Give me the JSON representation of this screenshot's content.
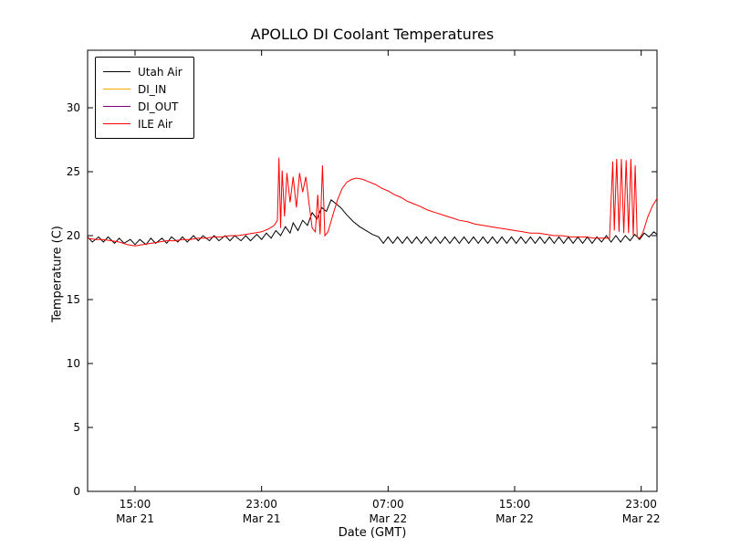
{
  "chart_data": {
    "type": "line",
    "title": "APOLLO DI Coolant Temperatures",
    "xlabel": "Date (GMT)",
    "ylabel": "Temperature (C)",
    "xlim": [
      0,
      36
    ],
    "ylim": [
      0,
      34.5
    ],
    "x_unit_hint": "hours along axis from ~12:00 Mar 21 GMT to ~00:00 Mar 23 GMT",
    "grid": false,
    "legend_position": "upper left",
    "xticks": [
      {
        "x": 3,
        "time": "15:00",
        "date": "Mar 21"
      },
      {
        "x": 11,
        "time": "23:00",
        "date": "Mar 21"
      },
      {
        "x": 19,
        "time": "07:00",
        "date": "Mar 22"
      },
      {
        "x": 27,
        "time": "15:00",
        "date": "Mar 22"
      },
      {
        "x": 35,
        "time": "23:00",
        "date": "Mar 22"
      }
    ],
    "yticks": [
      0,
      5,
      10,
      15,
      20,
      25,
      30
    ],
    "series": [
      {
        "name": "Utah Air",
        "color": "#000000",
        "points": [
          [
            0,
            19.9
          ],
          [
            0.3,
            19.5
          ],
          [
            0.7,
            19.9
          ],
          [
            1,
            19.5
          ],
          [
            1.3,
            19.9
          ],
          [
            1.7,
            19.4
          ],
          [
            2,
            19.8
          ],
          [
            2.3,
            19.4
          ],
          [
            2.7,
            19.7
          ],
          [
            3,
            19.3
          ],
          [
            3.3,
            19.7
          ],
          [
            3.7,
            19.3
          ],
          [
            4,
            19.8
          ],
          [
            4.3,
            19.4
          ],
          [
            4.7,
            19.8
          ],
          [
            5,
            19.4
          ],
          [
            5.3,
            19.9
          ],
          [
            5.7,
            19.5
          ],
          [
            6,
            19.9
          ],
          [
            6.3,
            19.5
          ],
          [
            6.7,
            20.0
          ],
          [
            7,
            19.6
          ],
          [
            7.3,
            20.0
          ],
          [
            7.7,
            19.6
          ],
          [
            8,
            20.0
          ],
          [
            8.3,
            19.6
          ],
          [
            8.7,
            20.0
          ],
          [
            9,
            19.6
          ],
          [
            9.3,
            20.0
          ],
          [
            9.7,
            19.6
          ],
          [
            10,
            20.0
          ],
          [
            10.3,
            19.6
          ],
          [
            10.7,
            20.1
          ],
          [
            11,
            19.7
          ],
          [
            11.3,
            20.2
          ],
          [
            11.6,
            19.8
          ],
          [
            11.9,
            20.4
          ],
          [
            12.2,
            20.0
          ],
          [
            12.5,
            20.7
          ],
          [
            12.8,
            20.2
          ],
          [
            13,
            21.0
          ],
          [
            13.3,
            20.4
          ],
          [
            13.6,
            21.2
          ],
          [
            13.9,
            20.8
          ],
          [
            14.2,
            21.8
          ],
          [
            14.5,
            21.3
          ],
          [
            14.8,
            22.2
          ],
          [
            15.1,
            21.9
          ],
          [
            15.4,
            22.8
          ],
          [
            15.7,
            22.5
          ],
          [
            16,
            22.2
          ],
          [
            16.4,
            21.6
          ],
          [
            16.8,
            21.1
          ],
          [
            17.2,
            20.7
          ],
          [
            17.6,
            20.4
          ],
          [
            18,
            20.1
          ],
          [
            18.4,
            19.9
          ],
          [
            18.7,
            19.4
          ],
          [
            19,
            19.9
          ],
          [
            19.3,
            19.4
          ],
          [
            19.6,
            19.9
          ],
          [
            19.9,
            19.4
          ],
          [
            20.2,
            19.9
          ],
          [
            20.5,
            19.4
          ],
          [
            20.8,
            19.9
          ],
          [
            21.1,
            19.4
          ],
          [
            21.4,
            19.9
          ],
          [
            21.7,
            19.4
          ],
          [
            22,
            19.9
          ],
          [
            22.3,
            19.4
          ],
          [
            22.6,
            19.9
          ],
          [
            22.9,
            19.4
          ],
          [
            23.2,
            19.9
          ],
          [
            23.5,
            19.4
          ],
          [
            23.8,
            19.9
          ],
          [
            24.1,
            19.4
          ],
          [
            24.4,
            19.9
          ],
          [
            24.7,
            19.4
          ],
          [
            25,
            19.9
          ],
          [
            25.3,
            19.4
          ],
          [
            25.6,
            19.9
          ],
          [
            25.9,
            19.4
          ],
          [
            26.2,
            19.9
          ],
          [
            26.5,
            19.4
          ],
          [
            26.8,
            19.9
          ],
          [
            27.1,
            19.4
          ],
          [
            27.4,
            19.9
          ],
          [
            27.7,
            19.4
          ],
          [
            28,
            19.9
          ],
          [
            28.3,
            19.4
          ],
          [
            28.6,
            19.9
          ],
          [
            28.9,
            19.4
          ],
          [
            29.2,
            19.9
          ],
          [
            29.5,
            19.4
          ],
          [
            29.8,
            19.9
          ],
          [
            30.1,
            19.4
          ],
          [
            30.4,
            19.9
          ],
          [
            30.7,
            19.4
          ],
          [
            31,
            19.9
          ],
          [
            31.3,
            19.4
          ],
          [
            31.6,
            19.9
          ],
          [
            31.9,
            19.4
          ],
          [
            32.2,
            19.9
          ],
          [
            32.5,
            19.5
          ],
          [
            32.8,
            20.0
          ],
          [
            33.1,
            19.5
          ],
          [
            33.4,
            20.0
          ],
          [
            33.7,
            19.5
          ],
          [
            34,
            20.0
          ],
          [
            34.3,
            19.6
          ],
          [
            34.6,
            20.1
          ],
          [
            34.9,
            19.7
          ],
          [
            35.2,
            20.2
          ],
          [
            35.5,
            19.9
          ],
          [
            35.8,
            20.3
          ],
          [
            36,
            20.1
          ]
        ]
      },
      {
        "name": "DI_IN",
        "color": "#ffa500",
        "points": []
      },
      {
        "name": "DI_OUT",
        "color": "#800080",
        "points": []
      },
      {
        "name": "ILE Air",
        "color": "#ff0000",
        "points": [
          [
            0,
            19.8
          ],
          [
            0.5,
            19.7
          ],
          [
            1,
            19.7
          ],
          [
            1.5,
            19.6
          ],
          [
            2,
            19.5
          ],
          [
            2.5,
            19.3
          ],
          [
            3,
            19.2
          ],
          [
            3.5,
            19.3
          ],
          [
            4,
            19.4
          ],
          [
            4.5,
            19.5
          ],
          [
            5,
            19.6
          ],
          [
            5.5,
            19.6
          ],
          [
            6,
            19.7
          ],
          [
            6.5,
            19.7
          ],
          [
            7,
            19.8
          ],
          [
            7.5,
            19.8
          ],
          [
            8,
            19.9
          ],
          [
            8.5,
            19.9
          ],
          [
            9,
            20.0
          ],
          [
            9.5,
            20.0
          ],
          [
            10,
            20.1
          ],
          [
            10.5,
            20.2
          ],
          [
            11,
            20.3
          ],
          [
            11.4,
            20.5
          ],
          [
            11.8,
            20.8
          ],
          [
            12,
            21.2
          ],
          [
            12.1,
            26.1
          ],
          [
            12.2,
            20.6
          ],
          [
            12.3,
            25.1
          ],
          [
            12.45,
            21.5
          ],
          [
            12.6,
            24.9
          ],
          [
            12.8,
            22.6
          ],
          [
            13,
            24.6
          ],
          [
            13.2,
            22.2
          ],
          [
            13.4,
            24.9
          ],
          [
            13.6,
            23.4
          ],
          [
            13.8,
            24.6
          ],
          [
            14,
            22.5
          ],
          [
            14.2,
            20.6
          ],
          [
            14.4,
            20.3
          ],
          [
            14.55,
            23.2
          ],
          [
            14.7,
            20.1
          ],
          [
            14.85,
            25.5
          ],
          [
            15,
            20.0
          ],
          [
            15.2,
            20.3
          ],
          [
            15.5,
            21.6
          ],
          [
            15.8,
            22.8
          ],
          [
            16.1,
            23.7
          ],
          [
            16.4,
            24.2
          ],
          [
            16.7,
            24.4
          ],
          [
            17,
            24.5
          ],
          [
            17.4,
            24.4
          ],
          [
            17.8,
            24.2
          ],
          [
            18.2,
            24.0
          ],
          [
            18.6,
            23.7
          ],
          [
            19,
            23.5
          ],
          [
            19.4,
            23.2
          ],
          [
            19.8,
            23.0
          ],
          [
            20.2,
            22.7
          ],
          [
            20.6,
            22.5
          ],
          [
            21,
            22.3
          ],
          [
            21.5,
            22.0
          ],
          [
            22,
            21.8
          ],
          [
            22.5,
            21.6
          ],
          [
            23,
            21.4
          ],
          [
            23.5,
            21.2
          ],
          [
            24,
            21.1
          ],
          [
            24.5,
            20.9
          ],
          [
            25,
            20.8
          ],
          [
            25.5,
            20.7
          ],
          [
            26,
            20.6
          ],
          [
            26.5,
            20.5
          ],
          [
            27,
            20.4
          ],
          [
            27.5,
            20.3
          ],
          [
            28,
            20.2
          ],
          [
            28.5,
            20.2
          ],
          [
            29,
            20.1
          ],
          [
            29.5,
            20.0
          ],
          [
            30,
            20.0
          ],
          [
            30.5,
            19.9
          ],
          [
            31,
            19.9
          ],
          [
            31.5,
            19.9
          ],
          [
            32,
            19.8
          ],
          [
            32.5,
            19.8
          ],
          [
            33,
            19.8
          ],
          [
            33.2,
            25.8
          ],
          [
            33.3,
            20.4
          ],
          [
            33.45,
            26.0
          ],
          [
            33.6,
            20.3
          ],
          [
            33.75,
            26.0
          ],
          [
            33.9,
            20.2
          ],
          [
            34.05,
            25.9
          ],
          [
            34.2,
            20.2
          ],
          [
            34.35,
            26.0
          ],
          [
            34.5,
            20.0
          ],
          [
            34.62,
            25.5
          ],
          [
            34.75,
            19.9
          ],
          [
            34.9,
            19.8
          ],
          [
            35.1,
            20.2
          ],
          [
            35.4,
            21.4
          ],
          [
            35.7,
            22.3
          ],
          [
            36,
            22.9
          ]
        ]
      }
    ]
  }
}
